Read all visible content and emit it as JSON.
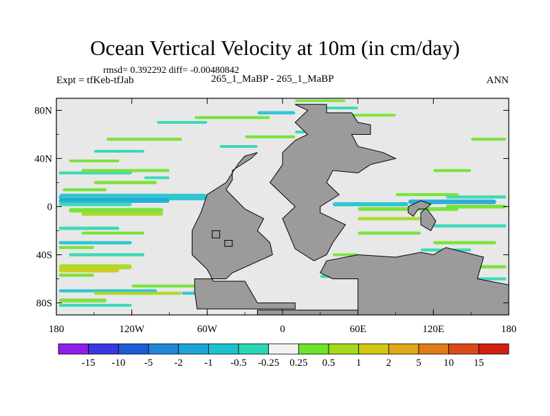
{
  "title": "Ocean Vertical Velocity at 10m (in cm/day)",
  "stats": {
    "rmsd_label": "rmsd=",
    "rmsd_value": "0.392292",
    "diff_label": "diff=",
    "diff_value": "-0.00480842"
  },
  "expt_label": "Expt = tfKeb-tfJab",
  "center_label": "265_1_MaBP - 265_1_MaBP",
  "season": "ANN",
  "axes": {
    "lat_ticks": [
      "80N",
      "40N",
      "0",
      "40S",
      "80S"
    ],
    "lon_ticks": [
      "180",
      "120W",
      "60W",
      "0",
      "60E",
      "120E",
      "180"
    ]
  },
  "colors": {
    "land": "#9b9b9b",
    "background_band": "#e8e8e8",
    "coast": "#000000"
  },
  "colorbar": {
    "labels": [
      "-15",
      "-10",
      "-5",
      "-2",
      "-1",
      "-0.5",
      "-0.25",
      "0.25",
      "0.5",
      "1",
      "2",
      "5",
      "10",
      "15"
    ],
    "colors": [
      "#8f1fe6",
      "#3a36e0",
      "#1e5bd6",
      "#1f86d8",
      "#19a6d6",
      "#1dc2ce",
      "#2ad7b4",
      "#f2f2f2",
      "#6fe22a",
      "#a6d81b",
      "#d2c814",
      "#e0a81a",
      "#e07a1b",
      "#dc4a18",
      "#d11f10"
    ]
  }
}
